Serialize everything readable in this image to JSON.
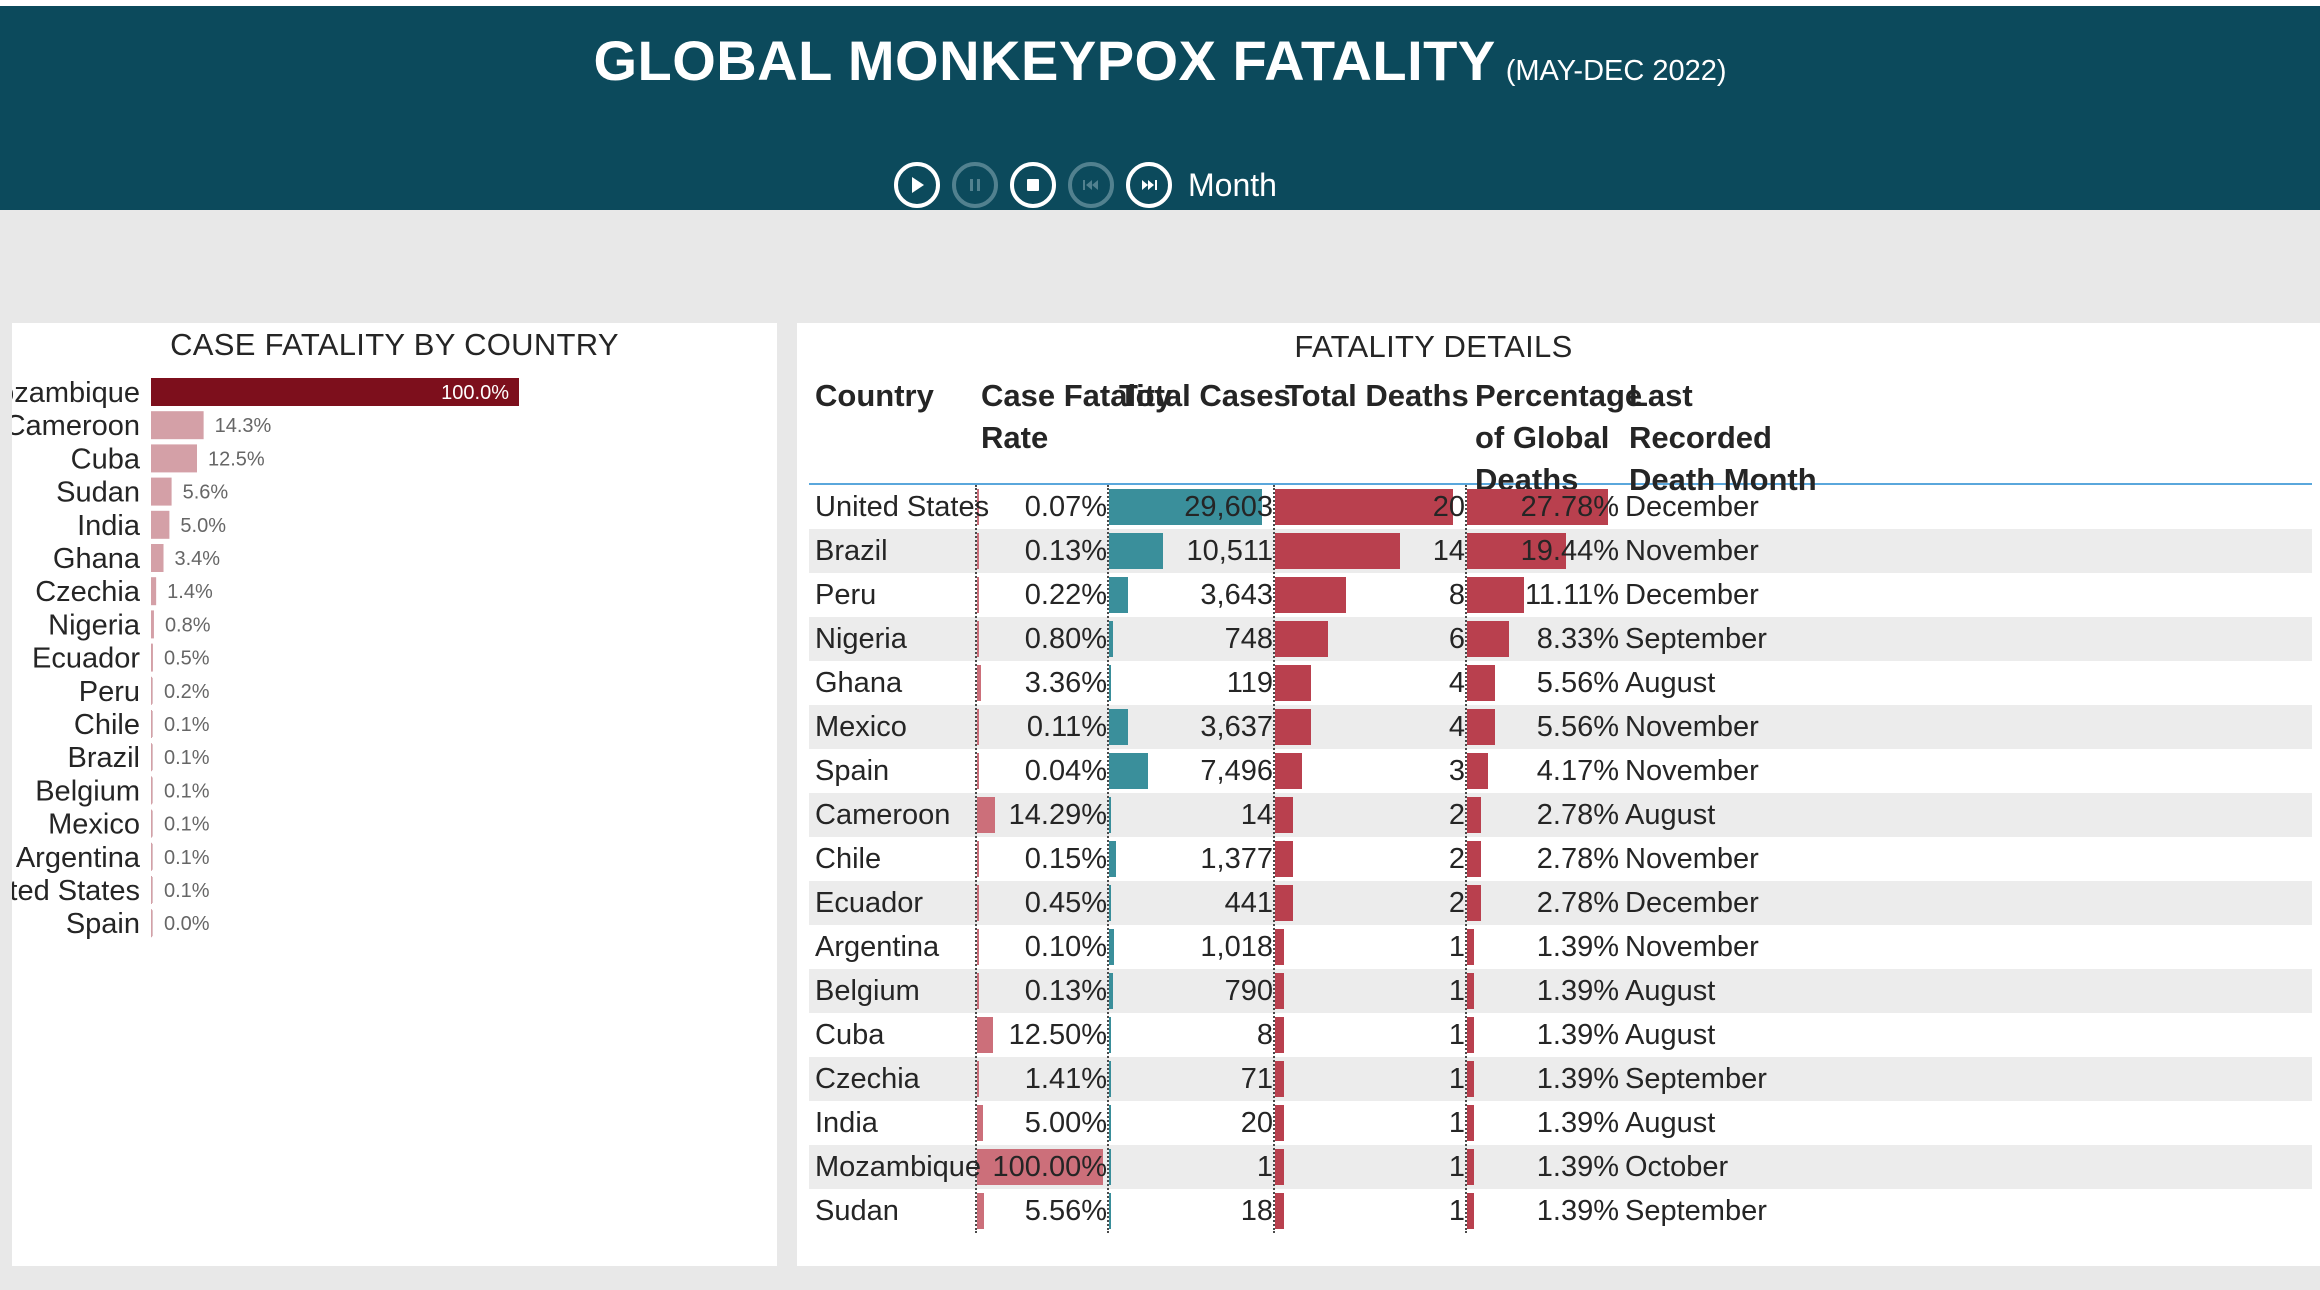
{
  "header": {
    "title": "GLOBAL MONKEYPOX FATALITY",
    "subtitle": "(MAY-DEC 2022)",
    "play_axis_label": "Month",
    "controls": [
      "play-icon",
      "pause-icon",
      "stop-icon",
      "previous-icon",
      "next-icon"
    ]
  },
  "colors": {
    "header_bg": "#0c4a5c",
    "bar_primary": "#7d0f1c",
    "bar_light": "#d4a0a7",
    "teal_bar": "#3a8f9b",
    "red_bar": "#b9404e",
    "pink_bar": "#cc6f7a"
  },
  "left_panel": {
    "title": "CASE FATALITY BY COUNTRY"
  },
  "chart_data": {
    "type": "bar",
    "orientation": "horizontal",
    "title": "CASE FATALITY BY COUNTRY",
    "categories": [
      "Mozambique",
      "Cameroon",
      "Cuba",
      "Sudan",
      "India",
      "Ghana",
      "Czechia",
      "Nigeria",
      "Ecuador",
      "Peru",
      "Chile",
      "Brazil",
      "Belgium",
      "Mexico",
      "Argentina",
      "United States",
      "Spain"
    ],
    "values": [
      100.0,
      14.3,
      12.5,
      5.6,
      5.0,
      3.4,
      1.4,
      0.8,
      0.5,
      0.2,
      0.1,
      0.1,
      0.1,
      0.1,
      0.1,
      0.1,
      0.0
    ],
    "labels": [
      "100.0%",
      "14.3%",
      "12.5%",
      "5.6%",
      "5.0%",
      "3.4%",
      "1.4%",
      "0.8%",
      "0.5%",
      "0.2%",
      "0.1%",
      "0.1%",
      "0.1%",
      "0.1%",
      "0.1%",
      "0.1%",
      "0.0%"
    ],
    "xlim": [
      0,
      100
    ],
    "unit": "%",
    "grid": false,
    "legend": "none"
  },
  "right_panel": {
    "title": "FATALITY DETAILS",
    "columns": {
      "country": "Country",
      "cfr": "Case Fatality Rate",
      "cases": "Total Cases",
      "deaths": "Total Deaths",
      "pct": "Percentage of Global Deaths",
      "month": "Last Recorded Death Month"
    },
    "sorted_by": "pct",
    "rows": [
      {
        "country": "United States",
        "cfr": "0.07%",
        "cfr_v": 0.07,
        "cases": "29,603",
        "cases_v": 29603,
        "deaths": "20",
        "deaths_v": 20,
        "pct": "27.78%",
        "pct_v": 27.78,
        "month": "December"
      },
      {
        "country": "Brazil",
        "cfr": "0.13%",
        "cfr_v": 0.13,
        "cases": "10,511",
        "cases_v": 10511,
        "deaths": "14",
        "deaths_v": 14,
        "pct": "19.44%",
        "pct_v": 19.44,
        "month": "November"
      },
      {
        "country": "Peru",
        "cfr": "0.22%",
        "cfr_v": 0.22,
        "cases": "3,643",
        "cases_v": 3643,
        "deaths": "8",
        "deaths_v": 8,
        "pct": "11.11%",
        "pct_v": 11.11,
        "month": "December"
      },
      {
        "country": "Nigeria",
        "cfr": "0.80%",
        "cfr_v": 0.8,
        "cases": "748",
        "cases_v": 748,
        "deaths": "6",
        "deaths_v": 6,
        "pct": "8.33%",
        "pct_v": 8.33,
        "month": "September"
      },
      {
        "country": "Ghana",
        "cfr": "3.36%",
        "cfr_v": 3.36,
        "cases": "119",
        "cases_v": 119,
        "deaths": "4",
        "deaths_v": 4,
        "pct": "5.56%",
        "pct_v": 5.56,
        "month": "August"
      },
      {
        "country": "Mexico",
        "cfr": "0.11%",
        "cfr_v": 0.11,
        "cases": "3,637",
        "cases_v": 3637,
        "deaths": "4",
        "deaths_v": 4,
        "pct": "5.56%",
        "pct_v": 5.56,
        "month": "November"
      },
      {
        "country": "Spain",
        "cfr": "0.04%",
        "cfr_v": 0.04,
        "cases": "7,496",
        "cases_v": 7496,
        "deaths": "3",
        "deaths_v": 3,
        "pct": "4.17%",
        "pct_v": 4.17,
        "month": "November"
      },
      {
        "country": "Cameroon",
        "cfr": "14.29%",
        "cfr_v": 14.29,
        "cases": "14",
        "cases_v": 14,
        "deaths": "2",
        "deaths_v": 2,
        "pct": "2.78%",
        "pct_v": 2.78,
        "month": "August"
      },
      {
        "country": "Chile",
        "cfr": "0.15%",
        "cfr_v": 0.15,
        "cases": "1,377",
        "cases_v": 1377,
        "deaths": "2",
        "deaths_v": 2,
        "pct": "2.78%",
        "pct_v": 2.78,
        "month": "November"
      },
      {
        "country": "Ecuador",
        "cfr": "0.45%",
        "cfr_v": 0.45,
        "cases": "441",
        "cases_v": 441,
        "deaths": "2",
        "deaths_v": 2,
        "pct": "2.78%",
        "pct_v": 2.78,
        "month": "December"
      },
      {
        "country": "Argentina",
        "cfr": "0.10%",
        "cfr_v": 0.1,
        "cases": "1,018",
        "cases_v": 1018,
        "deaths": "1",
        "deaths_v": 1,
        "pct": "1.39%",
        "pct_v": 1.39,
        "month": "November"
      },
      {
        "country": "Belgium",
        "cfr": "0.13%",
        "cfr_v": 0.13,
        "cases": "790",
        "cases_v": 790,
        "deaths": "1",
        "deaths_v": 1,
        "pct": "1.39%",
        "pct_v": 1.39,
        "month": "August"
      },
      {
        "country": "Cuba",
        "cfr": "12.50%",
        "cfr_v": 12.5,
        "cases": "8",
        "cases_v": 8,
        "deaths": "1",
        "deaths_v": 1,
        "pct": "1.39%",
        "pct_v": 1.39,
        "month": "August"
      },
      {
        "country": "Czechia",
        "cfr": "1.41%",
        "cfr_v": 1.41,
        "cases": "71",
        "cases_v": 71,
        "deaths": "1",
        "deaths_v": 1,
        "pct": "1.39%",
        "pct_v": 1.39,
        "month": "September"
      },
      {
        "country": "India",
        "cfr": "5.00%",
        "cfr_v": 5.0,
        "cases": "20",
        "cases_v": 20,
        "deaths": "1",
        "deaths_v": 1,
        "pct": "1.39%",
        "pct_v": 1.39,
        "month": "August"
      },
      {
        "country": "Mozambique",
        "cfr": "100.00%",
        "cfr_v": 100.0,
        "cases": "1",
        "cases_v": 1,
        "deaths": "1",
        "deaths_v": 1,
        "pct": "1.39%",
        "pct_v": 1.39,
        "month": "October"
      },
      {
        "country": "Sudan",
        "cfr": "5.56%",
        "cfr_v": 5.56,
        "cases": "18",
        "cases_v": 18,
        "deaths": "1",
        "deaths_v": 1,
        "pct": "1.39%",
        "pct_v": 1.39,
        "month": "September"
      }
    ]
  }
}
